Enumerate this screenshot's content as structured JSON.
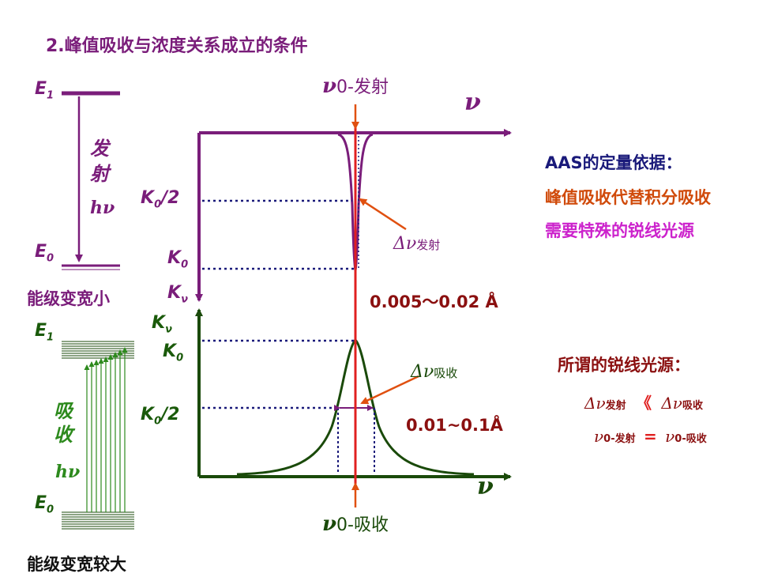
{
  "title": "2.峰值吸收与浓度关系成立的条件",
  "emission": {
    "E1": "E",
    "E1_sub": "1",
    "E0": "E",
    "E0_sub": "0",
    "transition_label": "发\n射",
    "transition_char1": "发",
    "transition_char2": "射",
    "hv": "hν",
    "caption": "能级变宽小",
    "nu0_label": "ν",
    "nu0_sub": "0-发射",
    "axis_label": "ν",
    "K0_half": "K",
    "K0_half_sub": "0",
    "K0_half_tail": "/2",
    "K0": "K",
    "K0_sub": "0",
    "Kv": "K",
    "Kv_sub": "ν",
    "delta": "Δν",
    "delta_sub": "发射",
    "range": "0.005～0.02 Å"
  },
  "absorption": {
    "E1": "E",
    "E1_sub": "1",
    "E0": "E",
    "E0_sub": "0",
    "transition_char1": "吸",
    "transition_char2": "收",
    "hv": "hν",
    "caption": "能级变宽较大",
    "Kv": "K",
    "Kv_sub": "ν",
    "K0": "K",
    "K0_sub": "0",
    "K0_half": "K",
    "K0_half_sub": "0",
    "K0_half_tail": "/2",
    "delta": "Δν",
    "delta_sub": "吸收",
    "range": "0.01~0.1Å",
    "axis_label": "ν",
    "nu0_label": "ν",
    "nu0_sub": "0-吸收"
  },
  "right_notes": {
    "line1": "AAS的定量依据：",
    "line2": "峰值吸收代替积分吸收",
    "line3": "需要特殊的锐线光源",
    "line4": "所谓的锐线光源：",
    "cond1_left": "Δν",
    "cond1_left_sub": "发射",
    "cond1_op": "《",
    "cond1_right": "Δν",
    "cond1_right_sub": "吸收",
    "cond2_left": "ν",
    "cond2_left_sub": "0-发射",
    "cond2_op": "=",
    "cond2_right": "ν",
    "cond2_right_sub": "0-吸收"
  },
  "colors": {
    "purple": "#7a1d7a",
    "green": "#1a4a0a",
    "red": "#e02020",
    "orange": "#e05010",
    "navy": "#1a1a7a"
  }
}
